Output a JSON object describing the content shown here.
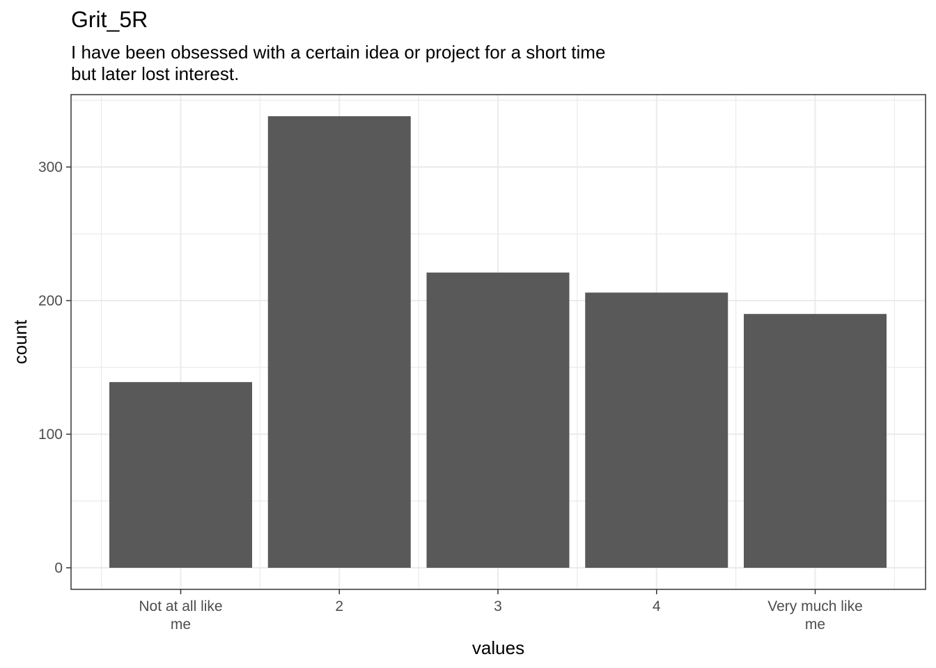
{
  "chart_data": {
    "type": "bar",
    "title": "Grit_5R",
    "subtitle_lines": [
      "I have been obsessed with a certain idea or project for a short time",
      "but later lost interest."
    ],
    "xlabel": "values",
    "ylabel": "count",
    "categories": [
      [
        "Not at all like",
        "me"
      ],
      [
        "2"
      ],
      [
        "3"
      ],
      [
        "4"
      ],
      [
        "Very much like",
        "me"
      ]
    ],
    "values": [
      139,
      338,
      221,
      206,
      190
    ],
    "ylim": [
      0,
      350
    ],
    "yticks": [
      0,
      100,
      200,
      300
    ],
    "grid": true,
    "bar_color": "#595959",
    "grid_color": "#ebebeb"
  }
}
